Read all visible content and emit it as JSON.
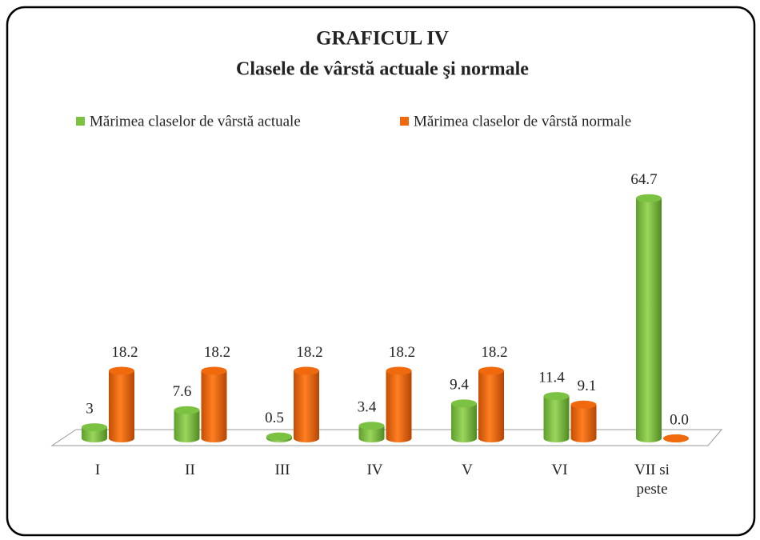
{
  "chart_data": {
    "type": "bar3d",
    "title": "GRAFICUL IV",
    "subtitle": "Clasele de vârstă actuale şi normale",
    "categories": [
      "I",
      "II",
      "III",
      "IV",
      "V",
      "VI",
      "VII si peste"
    ],
    "series": [
      {
        "name": "Mărimea claselor de vârstă actuale",
        "color": "#7cc242",
        "values": [
          3,
          7.6,
          0.5,
          3.4,
          9.4,
          11.4,
          64.7
        ]
      },
      {
        "name": "Mărimea claselor de vârstă normale",
        "color": "#f0690c",
        "values": [
          18.2,
          18.2,
          18.2,
          18.2,
          18.2,
          9.1,
          0.0
        ],
        "value_labels": [
          "18.2",
          "18.2",
          "18.2",
          "18.2",
          "18.2",
          "9.1",
          "0.0"
        ]
      }
    ],
    "legend": "top"
  }
}
